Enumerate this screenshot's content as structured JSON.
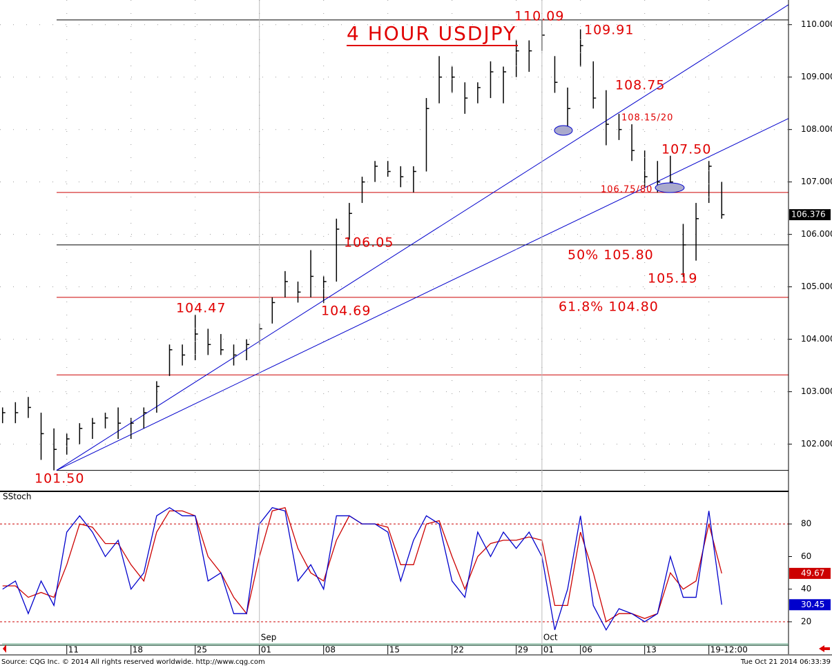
{
  "chart_data": [
    {
      "type": "ohlc",
      "title": "4 HOUR USDJPY",
      "color": "#000000",
      "x": [
        0,
        1,
        2,
        3,
        4,
        5,
        6,
        7,
        8,
        9,
        10,
        11,
        12,
        13,
        14,
        15,
        16,
        17,
        18,
        19,
        20,
        21,
        22,
        23,
        24,
        25,
        26,
        27,
        28,
        29,
        30,
        31,
        32,
        33,
        34,
        35,
        36,
        37,
        38,
        39,
        40,
        41,
        42,
        43,
        44,
        45,
        46,
        47,
        48,
        49,
        50,
        51,
        52,
        53,
        54,
        55,
        56
      ],
      "high": [
        102.7,
        102.8,
        102.9,
        102.6,
        102.3,
        102.2,
        102.4,
        102.5,
        102.6,
        102.7,
        102.5,
        102.7,
        103.2,
        103.9,
        103.9,
        104.47,
        104.2,
        104.1,
        103.9,
        104.0,
        104.3,
        104.8,
        105.3,
        105.1,
        105.7,
        105.2,
        106.3,
        106.6,
        107.1,
        107.4,
        107.4,
        107.3,
        107.3,
        108.6,
        109.4,
        109.2,
        108.9,
        108.9,
        109.3,
        109.2,
        109.7,
        109.7,
        110.09,
        109.4,
        108.8,
        109.91,
        109.3,
        108.75,
        108.3,
        108.1,
        107.6,
        107.4,
        107.5,
        106.2,
        106.6,
        107.4,
        107.0
      ],
      "low": [
        102.4,
        102.4,
        102.5,
        101.7,
        101.5,
        101.8,
        102.0,
        102.1,
        102.3,
        102.1,
        102.1,
        102.3,
        102.6,
        103.3,
        103.5,
        103.6,
        103.7,
        103.7,
        103.5,
        103.6,
        103.9,
        104.3,
        104.8,
        104.7,
        104.8,
        104.69,
        105.1,
        105.9,
        106.6,
        107.0,
        107.1,
        106.9,
        106.8,
        107.2,
        108.5,
        108.7,
        108.3,
        108.5,
        108.6,
        108.5,
        109.0,
        109.1,
        109.5,
        108.7,
        108.0,
        109.2,
        108.4,
        107.7,
        107.8,
        107.4,
        106.9,
        106.8,
        106.8,
        105.19,
        105.5,
        106.6,
        106.3
      ],
      "close": [
        102.6,
        102.6,
        102.7,
        102.2,
        101.9,
        102.1,
        102.3,
        102.4,
        102.5,
        102.4,
        102.4,
        102.6,
        103.1,
        103.8,
        103.7,
        104.1,
        103.9,
        103.8,
        103.7,
        103.9,
        104.2,
        104.7,
        105.1,
        104.9,
        105.2,
        105.1,
        106.1,
        106.4,
        107.0,
        107.3,
        107.2,
        107.1,
        107.2,
        108.4,
        109.0,
        109.0,
        108.6,
        108.8,
        109.1,
        109.1,
        109.5,
        109.5,
        109.8,
        108.9,
        108.4,
        109.6,
        108.6,
        108.1,
        108.0,
        107.6,
        107.1,
        107.0,
        107.0,
        105.8,
        106.3,
        107.3,
        106.376
      ],
      "xlim": [
        -0.2,
        61.2
      ],
      "ylim": [
        101.1,
        110.47
      ],
      "yticks": [
        {
          "value": 102,
          "label": "102.000"
        },
        {
          "value": 103,
          "label": "103.000"
        },
        {
          "value": 104,
          "label": "104.000"
        },
        {
          "value": 105,
          "label": "105.000"
        },
        {
          "value": 106,
          "label": "106.000"
        },
        {
          "value": 107,
          "label": "107.000"
        },
        {
          "value": 108,
          "label": "108.000"
        },
        {
          "value": 109,
          "label": "109.000"
        },
        {
          "value": 110,
          "label": "110.000"
        }
      ],
      "last_value": 106.376,
      "levels": [
        {
          "value": 110.09,
          "color": "#000000"
        },
        {
          "value": 106.8,
          "color": "#cc0000"
        },
        {
          "value": 105.8,
          "color": "#000000"
        },
        {
          "value": 104.8,
          "color": "#cc0000"
        },
        {
          "value": 103.32,
          "color": "#cc0000"
        },
        {
          "value": 101.5,
          "color": "#000000"
        }
      ],
      "trendlines": [
        {
          "color": "#0000cc",
          "x": [
            4.2,
            61.2
          ],
          "y": [
            101.5,
            110.38
          ]
        },
        {
          "color": "#0000cc",
          "x": [
            4.2,
            61.2
          ],
          "y": [
            101.5,
            108.21
          ]
        }
      ],
      "annotations": [
        "110.09",
        "109.91",
        "108.75",
        "108.15/20",
        "107.50",
        "106.75/80",
        "106.05",
        "50% 105.80",
        "105.19",
        "61.8% 104.80",
        "104.47",
        "104.69",
        "101.50"
      ],
      "grid": true
    },
    {
      "type": "line",
      "title": "SStoch",
      "x": [
        0,
        1,
        2,
        3,
        4,
        5,
        6,
        7,
        8,
        9,
        10,
        11,
        12,
        13,
        14,
        15,
        16,
        17,
        18,
        19,
        20,
        21,
        22,
        23,
        24,
        25,
        26,
        27,
        28,
        29,
        30,
        31,
        32,
        33,
        34,
        35,
        36,
        37,
        38,
        39,
        40,
        41,
        42,
        43,
        44,
        45,
        46,
        47,
        48,
        49,
        50,
        51,
        52,
        53,
        54,
        55,
        56
      ],
      "series": [
        {
          "color": "#0000cc",
          "values": [
            40,
            45,
            25,
            45,
            30,
            75,
            85,
            75,
            60,
            70,
            40,
            50,
            85,
            90,
            85,
            85,
            45,
            50,
            25,
            25,
            80,
            90,
            88,
            45,
            55,
            40,
            85,
            85,
            80,
            80,
            75,
            45,
            70,
            85,
            80,
            45,
            35,
            75,
            60,
            75,
            65,
            75,
            60,
            15,
            40,
            85,
            30,
            15,
            28,
            25,
            20,
            25,
            60,
            35,
            35,
            88,
            30.45
          ],
          "value_labels": [
            null,
            null,
            null,
            null,
            null,
            null,
            null,
            null,
            null,
            null,
            null,
            null,
            null,
            null,
            null,
            null,
            null,
            null,
            null,
            null,
            null,
            null,
            null,
            null,
            null,
            null,
            null,
            null,
            null,
            null,
            null,
            null,
            null,
            null,
            null,
            null,
            null,
            null,
            null,
            null,
            null,
            null,
            null,
            null,
            null,
            null,
            null,
            null,
            null,
            null,
            null,
            null,
            null,
            null,
            null,
            null,
            "30.45"
          ]
        },
        {
          "color": "#cc0000",
          "values": [
            42,
            42,
            35,
            38,
            35,
            55,
            80,
            78,
            68,
            68,
            55,
            45,
            75,
            88,
            88,
            85,
            60,
            50,
            35,
            25,
            60,
            88,
            90,
            65,
            50,
            45,
            70,
            85,
            80,
            80,
            78,
            55,
            55,
            80,
            82,
            60,
            40,
            60,
            68,
            70,
            70,
            72,
            70,
            30,
            30,
            75,
            50,
            20,
            25,
            25,
            22,
            25,
            50,
            40,
            45,
            80,
            49.67
          ],
          "value_labels": [
            null,
            null,
            null,
            null,
            null,
            null,
            null,
            null,
            null,
            null,
            null,
            null,
            null,
            null,
            null,
            null,
            null,
            null,
            null,
            null,
            null,
            null,
            null,
            null,
            null,
            null,
            null,
            null,
            null,
            null,
            null,
            null,
            null,
            null,
            null,
            null,
            null,
            null,
            null,
            null,
            null,
            null,
            null,
            null,
            null,
            null,
            null,
            null,
            null,
            null,
            null,
            null,
            null,
            null,
            null,
            null,
            "49.67"
          ]
        }
      ],
      "xlim": [
        -0.2,
        61.2
      ],
      "ylim": [
        5.6,
        100
      ],
      "yticks": [
        20,
        40,
        60,
        80
      ],
      "levels": [
        20,
        80
      ],
      "xticks": [
        {
          "value": 5,
          "label": "11"
        },
        {
          "value": 10,
          "label": "18"
        },
        {
          "value": 15,
          "label": "25"
        },
        {
          "value": 20,
          "label": "01"
        },
        {
          "value": 25,
          "label": "08"
        },
        {
          "value": 30,
          "label": "15"
        },
        {
          "value": 35,
          "label": "22"
        },
        {
          "value": 40,
          "label": "29"
        },
        {
          "value": 42,
          "label": "01"
        },
        {
          "value": 45,
          "label": "06"
        },
        {
          "value": 50,
          "label": "13"
        },
        {
          "value": 55,
          "label": "19-12:00"
        }
      ],
      "month_ticks": [
        {
          "value": 20,
          "label": "Sep"
        },
        {
          "value": 42,
          "label": "Oct"
        }
      ]
    }
  ],
  "footer": {
    "source": "Source: CQG Inc. © 2014 All rights reserved worldwide. http://www.cqg.com",
    "timestamp": "Tue Oct 21 2014 06:33:39"
  }
}
